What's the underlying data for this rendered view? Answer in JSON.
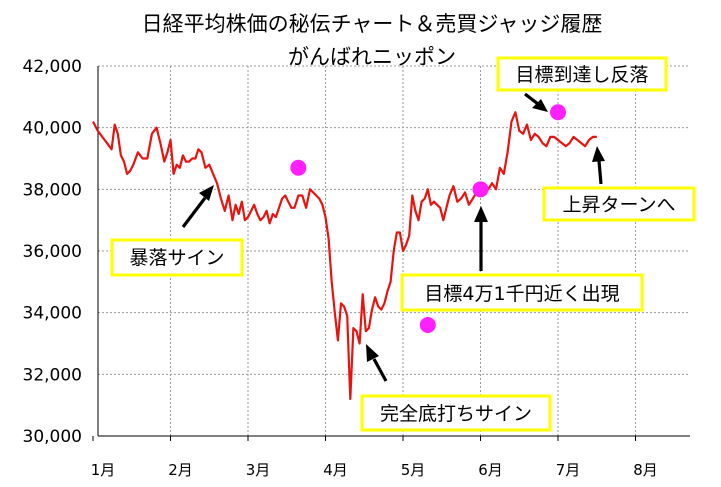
{
  "chart_data": {
    "type": "line",
    "title": [
      "日経平均株価の秘伝チャート＆売買ジャッジ履歴",
      "がんばれニッポン"
    ],
    "xlabel": "",
    "ylabel": "",
    "ylim": [
      30000,
      42000
    ],
    "yticks": [
      "30,000",
      "32,000",
      "34,000",
      "36,000",
      "38,000",
      "40,000",
      "42,000"
    ],
    "yticks_values": [
      30000,
      32000,
      34000,
      36000,
      38000,
      40000,
      42000
    ],
    "xlim": [
      0,
      7.4
    ],
    "xticks": [
      "1月",
      "2月",
      "3月",
      "4月",
      "5月",
      "6月",
      "7月",
      "8月"
    ],
    "xticks_values": [
      0,
      1,
      2,
      3,
      4,
      5,
      6,
      7
    ],
    "grid": true,
    "line_color": "#e8130f",
    "marker_color": "#ff1fff",
    "series": [
      {
        "x": [
          0.0,
          0.06,
          0.12,
          0.18,
          0.24,
          0.28,
          0.32,
          0.36,
          0.4,
          0.44,
          0.48,
          0.52,
          0.58,
          0.64,
          0.7,
          0.76,
          0.82,
          0.87,
          0.92,
          0.96,
          1.0,
          1.04,
          1.08,
          1.12,
          1.16,
          1.2,
          1.24,
          1.28,
          1.32,
          1.36,
          1.4,
          1.45,
          1.5,
          1.55,
          1.6,
          1.65,
          1.7,
          1.75,
          1.8,
          1.84,
          1.88,
          1.92,
          1.96,
          2.0,
          2.04,
          2.08,
          2.12,
          2.16,
          2.2,
          2.24,
          2.28,
          2.32,
          2.36,
          2.4,
          2.44,
          2.48,
          2.52,
          2.56,
          2.6,
          2.65,
          2.7,
          2.75,
          2.8,
          2.84,
          2.88,
          2.92,
          2.96,
          3.0,
          3.04,
          3.08,
          3.12,
          3.16,
          3.2,
          3.24,
          3.28,
          3.32,
          3.36,
          3.4,
          3.44,
          3.48,
          3.52,
          3.56,
          3.6,
          3.64,
          3.68,
          3.72,
          3.76,
          3.8,
          3.84,
          3.88,
          3.92,
          3.96,
          4.0,
          4.04,
          4.08,
          4.12,
          4.16,
          4.2,
          4.24,
          4.28,
          4.32,
          4.36,
          4.4,
          4.44,
          4.48,
          4.52,
          4.56,
          4.6,
          4.65,
          4.7,
          4.75,
          4.8,
          4.85,
          4.9,
          4.95,
          5.0,
          5.05,
          5.1,
          5.15,
          5.2,
          5.25,
          5.3,
          5.35,
          5.4,
          5.45,
          5.5,
          5.55,
          5.6,
          5.65,
          5.7,
          5.75,
          5.8,
          5.85,
          5.9,
          5.95,
          6.0,
          6.05,
          6.1,
          6.15,
          6.2,
          6.25,
          6.3,
          6.35,
          6.4,
          6.45,
          6.5
        ],
        "y": [
          40200,
          39900,
          39700,
          39500,
          39300,
          40100,
          39800,
          39100,
          38900,
          38500,
          38600,
          38800,
          39200,
          39000,
          39000,
          39800,
          40000,
          39500,
          38900,
          39200,
          39600,
          38500,
          38800,
          38700,
          39100,
          38900,
          38900,
          39000,
          39000,
          39300,
          39200,
          38700,
          38800,
          38500,
          38200,
          37700,
          37300,
          37800,
          37000,
          37500,
          37200,
          37600,
          37000,
          37100,
          37300,
          37500,
          37200,
          37000,
          37100,
          37300,
          36900,
          37200,
          37100,
          37400,
          37700,
          37800,
          37600,
          37400,
          37400,
          37800,
          37800,
          37400,
          38000,
          37900,
          37800,
          37700,
          37500,
          37100,
          36400,
          35000,
          34000,
          33100,
          34300,
          34200,
          33900,
          31200,
          33500,
          33400,
          33000,
          34600,
          33400,
          33500,
          34100,
          34500,
          34200,
          34100,
          34300,
          34700,
          35000,
          36000,
          36600,
          36600,
          36000,
          36200,
          36500,
          37800,
          37300,
          37000,
          37600,
          37700,
          38000,
          37500,
          37600,
          37500,
          37400,
          37000,
          37400,
          37800,
          38100,
          37600,
          37700,
          37900,
          37500,
          37700,
          37900,
          38000,
          38100,
          38000,
          38200,
          38000,
          38700,
          38500,
          39200,
          40200,
          40500,
          39900,
          39800,
          40100,
          39600,
          39800,
          39700,
          39500,
          39400,
          39700,
          39700,
          39600,
          39500,
          39400,
          39500,
          39700,
          39600,
          39500,
          39400,
          39600,
          39700,
          39700
        ]
      }
    ],
    "markers": [
      {
        "x": 2.65,
        "y": 38700
      },
      {
        "x": 4.32,
        "y": 33600
      },
      {
        "x": 5.0,
        "y": 38000
      },
      {
        "x": 6.0,
        "y": 40500
      }
    ],
    "annotations": [
      {
        "text": "目標到達し反落"
      },
      {
        "text": "上昇ターンへ"
      },
      {
        "text": "暴落サイン"
      },
      {
        "text": "目標4万1千円近く出現"
      },
      {
        "text": "完全底打ちサイン"
      }
    ]
  }
}
